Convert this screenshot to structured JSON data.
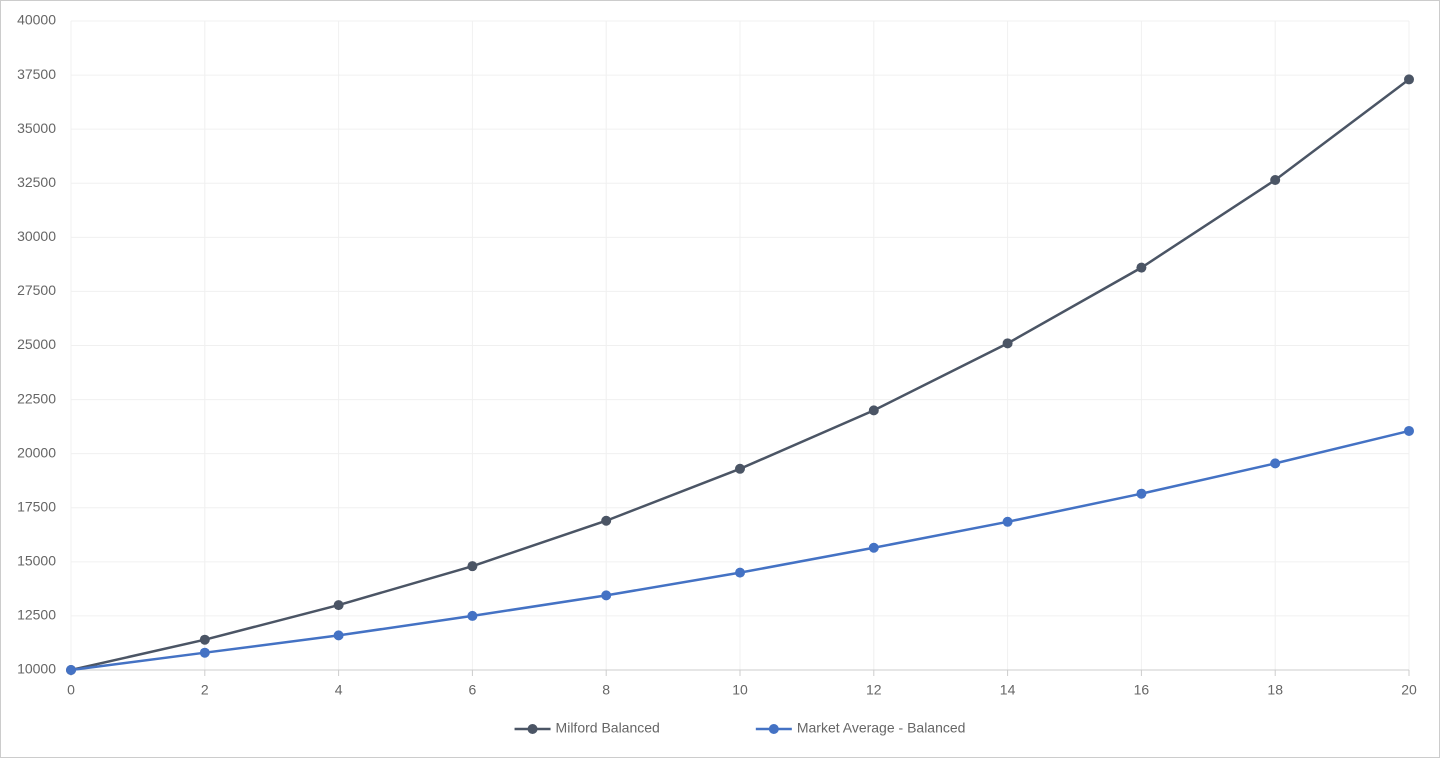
{
  "chart_data": {
    "type": "line",
    "x": [
      0,
      2,
      4,
      6,
      8,
      10,
      12,
      14,
      16,
      18,
      20
    ],
    "series": [
      {
        "name": "Milford Balanced",
        "color": "#4b5565",
        "values": [
          10000,
          11400,
          13000,
          14800,
          16900,
          19300,
          22000,
          25100,
          28600,
          32650,
          37300
        ]
      },
      {
        "name": "Market Average - Balanced",
        "color": "#4472c4",
        "values": [
          10000,
          10800,
          11600,
          12500,
          13450,
          14500,
          15650,
          16850,
          18150,
          19550,
          21050
        ]
      }
    ],
    "xlim": [
      0,
      20
    ],
    "xticks": [
      0,
      2,
      4,
      6,
      8,
      10,
      12,
      14,
      16,
      18,
      20
    ],
    "ylim": [
      10000,
      40000
    ],
    "yticks": [
      10000,
      12500,
      15000,
      17500,
      20000,
      22500,
      25000,
      27500,
      30000,
      32500,
      35000,
      37500,
      40000
    ],
    "grid": true,
    "legend": "bottom"
  }
}
